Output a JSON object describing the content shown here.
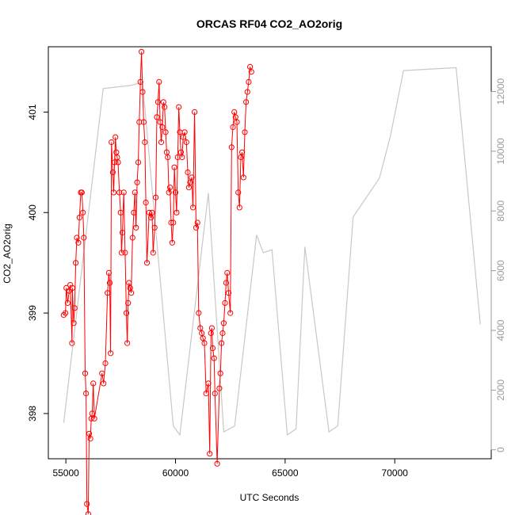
{
  "chart_data": {
    "type": "line",
    "title": "ORCAS RF04 CO2_AO2orig",
    "xlabel": "UTC Seconds",
    "ylabel": "CO2_AO2orig",
    "xlim": [
      54200,
      74400
    ],
    "ylim": [
      397.55,
      401.65
    ],
    "y2lim": [
      -300,
      13500
    ],
    "grid": false,
    "x_ticks": [
      55000,
      60000,
      65000,
      70000
    ],
    "y_ticks": [
      398,
      399,
      400,
      401
    ],
    "y2_ticks": [
      0,
      2000,
      4000,
      6000,
      8000,
      10000,
      12000
    ],
    "colors": {
      "series": "#ff0000",
      "altitude": "#c8c8c8",
      "axis": "#000000",
      "right_axis": "#9a9a9a"
    },
    "series": [
      {
        "color": "#ff0000",
        "marker": "open-circle",
        "points": [
          [
            54900,
            398.98
          ],
          [
            54980,
            399.0
          ],
          [
            55020,
            399.25
          ],
          [
            55080,
            399.1
          ],
          [
            55150,
            399.22
          ],
          [
            55200,
            399.28
          ],
          [
            55280,
            398.7
          ],
          [
            55300,
            399.25
          ],
          [
            55360,
            398.9
          ],
          [
            55400,
            399.05
          ],
          [
            55450,
            399.5
          ],
          [
            55500,
            399.75
          ],
          [
            55570,
            399.7
          ],
          [
            55620,
            399.95
          ],
          [
            55680,
            400.2
          ],
          [
            55730,
            400.2
          ],
          [
            55780,
            400.0
          ],
          [
            55820,
            399.75
          ],
          [
            55880,
            398.4
          ],
          [
            55920,
            398.2
          ],
          [
            55960,
            397.1
          ],
          [
            56020,
            397.0
          ],
          [
            56060,
            397.8
          ],
          [
            56120,
            397.75
          ],
          [
            56160,
            397.95
          ],
          [
            56200,
            398.0
          ],
          [
            56250,
            398.3
          ],
          [
            56300,
            397.95
          ],
          [
            56650,
            398.4
          ],
          [
            56720,
            398.3
          ],
          [
            56800,
            398.5
          ],
          [
            56900,
            399.2
          ],
          [
            56960,
            399.4
          ],
          [
            57000,
            399.3
          ],
          [
            57040,
            398.6
          ],
          [
            57080,
            400.7
          ],
          [
            57140,
            400.4
          ],
          [
            57180,
            400.2
          ],
          [
            57220,
            400.5
          ],
          [
            57260,
            400.75
          ],
          [
            57300,
            400.6
          ],
          [
            57340,
            400.55
          ],
          [
            57380,
            400.5
          ],
          [
            57440,
            400.2
          ],
          [
            57500,
            400.0
          ],
          [
            57540,
            399.6
          ],
          [
            57580,
            399.8
          ],
          [
            57640,
            400.2
          ],
          [
            57700,
            399.6
          ],
          [
            57760,
            399.0
          ],
          [
            57800,
            398.7
          ],
          [
            57840,
            399.1
          ],
          [
            57880,
            399.3
          ],
          [
            57930,
            399.25
          ],
          [
            57980,
            399.2
          ],
          [
            58040,
            399.75
          ],
          [
            58100,
            400.0
          ],
          [
            58150,
            400.2
          ],
          [
            58200,
            399.85
          ],
          [
            58250,
            400.3
          ],
          [
            58300,
            400.5
          ],
          [
            58350,
            400.9
          ],
          [
            58400,
            401.3
          ],
          [
            58450,
            401.6
          ],
          [
            58500,
            401.2
          ],
          [
            58550,
            400.9
          ],
          [
            58600,
            400.7
          ],
          [
            58650,
            400.1
          ],
          [
            58700,
            399.5
          ],
          [
            58800,
            400.0
          ],
          [
            58880,
            399.95
          ],
          [
            58930,
            400.0
          ],
          [
            58980,
            399.6
          ],
          [
            59050,
            399.85
          ],
          [
            59100,
            400.15
          ],
          [
            59150,
            400.95
          ],
          [
            59200,
            401.1
          ],
          [
            59250,
            401.3
          ],
          [
            59300,
            400.9
          ],
          [
            59350,
            400.7
          ],
          [
            59400,
            400.85
          ],
          [
            59450,
            401.1
          ],
          [
            59500,
            401.05
          ],
          [
            59550,
            400.8
          ],
          [
            59600,
            400.6
          ],
          [
            59650,
            400.55
          ],
          [
            59700,
            400.2
          ],
          [
            59750,
            400.25
          ],
          [
            59800,
            399.9
          ],
          [
            59850,
            399.7
          ],
          [
            59900,
            399.9
          ],
          [
            59950,
            400.45
          ],
          [
            60000,
            400.2
          ],
          [
            60050,
            400.0
          ],
          [
            60100,
            400.55
          ],
          [
            60150,
            401.05
          ],
          [
            60200,
            400.8
          ],
          [
            60250,
            400.6
          ],
          [
            60300,
            400.55
          ],
          [
            60350,
            400.75
          ],
          [
            60420,
            400.8
          ],
          [
            60500,
            400.7
          ],
          [
            60560,
            400.4
          ],
          [
            60610,
            400.25
          ],
          [
            60670,
            400.3
          ],
          [
            60740,
            400.35
          ],
          [
            60800,
            400.05
          ],
          [
            60870,
            401.0
          ],
          [
            60940,
            399.85
          ],
          [
            61000,
            399.9
          ],
          [
            61060,
            399.0
          ],
          [
            61130,
            398.85
          ],
          [
            61200,
            398.8
          ],
          [
            61250,
            398.75
          ],
          [
            61320,
            398.7
          ],
          [
            61400,
            398.2
          ],
          [
            61500,
            398.3
          ],
          [
            61560,
            397.6
          ],
          [
            61620,
            398.8
          ],
          [
            61660,
            398.85
          ],
          [
            61700,
            398.65
          ],
          [
            61760,
            398.55
          ],
          [
            61800,
            398.2
          ],
          [
            61900,
            397.5
          ],
          [
            62000,
            398.25
          ],
          [
            62050,
            398.4
          ],
          [
            62100,
            398.7
          ],
          [
            62150,
            398.8
          ],
          [
            62200,
            398.9
          ],
          [
            62260,
            399.1
          ],
          [
            62310,
            399.3
          ],
          [
            62360,
            399.4
          ],
          [
            62420,
            399.2
          ],
          [
            62500,
            399.0
          ],
          [
            62560,
            400.65
          ],
          [
            62620,
            400.85
          ],
          [
            62680,
            401.0
          ],
          [
            62740,
            400.95
          ],
          [
            62800,
            400.9
          ],
          [
            62860,
            400.2
          ],
          [
            62920,
            400.05
          ],
          [
            62980,
            400.55
          ],
          [
            63040,
            400.6
          ],
          [
            63100,
            400.35
          ],
          [
            63160,
            400.8
          ],
          [
            63220,
            401.1
          ],
          [
            63280,
            401.2
          ],
          [
            63340,
            401.3
          ],
          [
            63400,
            401.45
          ],
          [
            63460,
            401.4
          ]
        ]
      }
    ],
    "altitude_series": {
      "color": "#c8c8c8",
      "points": [
        [
          54900,
          900
        ],
        [
          56700,
          12100
        ],
        [
          57900,
          12200
        ],
        [
          58500,
          12300
        ],
        [
          59900,
          800
        ],
        [
          60200,
          500
        ],
        [
          61500,
          8600
        ],
        [
          62200,
          600
        ],
        [
          62700,
          800
        ],
        [
          63700,
          7200
        ],
        [
          64000,
          6600
        ],
        [
          64400,
          6700
        ],
        [
          65100,
          500
        ],
        [
          65500,
          700
        ],
        [
          65900,
          6800
        ],
        [
          67000,
          600
        ],
        [
          67400,
          800
        ],
        [
          68100,
          7800
        ],
        [
          69300,
          9100
        ],
        [
          69800,
          10500
        ],
        [
          70400,
          12700
        ],
        [
          72800,
          12800
        ],
        [
          73300,
          8900
        ],
        [
          73900,
          4200
        ]
      ]
    }
  }
}
